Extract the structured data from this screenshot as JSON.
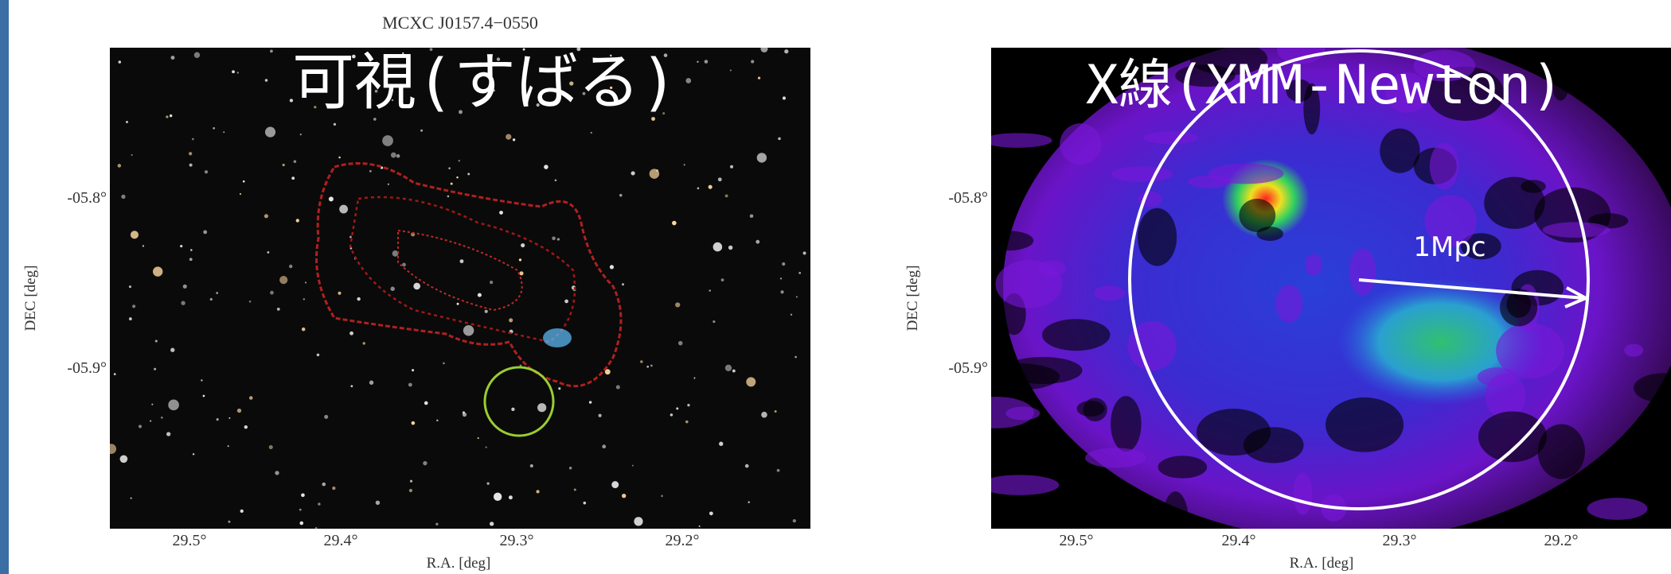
{
  "title": "MCXC J0157.4−0550",
  "panels": [
    {
      "label": "可視(すばる)",
      "y_axis_label": "DEC [deg]",
      "x_axis_label": "R.A. [deg]",
      "yticks": [
        "-05.8°",
        "-05.9°"
      ],
      "xticks": [
        "29.5°",
        "29.4°",
        "29.3°",
        "29.2°"
      ]
    },
    {
      "label": "X線(XMM-Newton)",
      "y_axis_label": "DEC [deg]",
      "x_axis_label": "R.A. [deg]",
      "yticks": [
        "-05.8°",
        "-05.9°"
      ],
      "xticks": [
        "29.5°",
        "29.4°",
        "29.3°",
        "29.2°"
      ],
      "scale_label": "1Mpc"
    }
  ]
}
